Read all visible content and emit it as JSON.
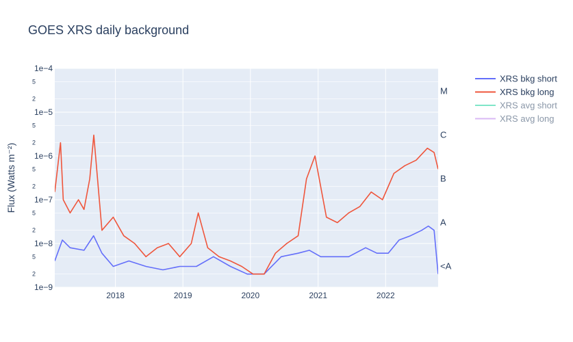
{
  "chart_data": {
    "type": "line",
    "title": "GOES XRS daily background",
    "ylabel": "Flux (Watts m⁻²)",
    "yscale": "log",
    "ylim": [
      1e-09,
      0.0001
    ],
    "xlim": [
      "2017-02-07",
      "2022-10-12"
    ],
    "x_ticks": [
      "2018",
      "2019",
      "2020",
      "2021",
      "2022"
    ],
    "y_major_ticks": [
      "1e−4",
      "1e−5",
      "1e−6",
      "1e−7",
      "1e−8",
      "1e−9"
    ],
    "y_minor_labels": [
      "5",
      "2"
    ],
    "flare_classes": [
      "M",
      "C",
      "B",
      "A",
      "<A"
    ],
    "grid": true,
    "legend_position": "top-right",
    "colors": {
      "plot_bg": "#E5ECF6",
      "grid": "#ffffff",
      "bkg_short": "#636EFA",
      "bkg_long": "#EF553B",
      "avg_short": "#7FE5C8",
      "avg_long": "#D9B8F5"
    },
    "series": [
      {
        "name": "XRS bkg short",
        "visible": true,
        "x": [
          "2017-02-07",
          "2017-03-20",
          "2017-05-01",
          "2017-07-15",
          "2017-09-05",
          "2017-10-20",
          "2017-12-20",
          "2018-03-15",
          "2018-06-15",
          "2018-09-15",
          "2018-12-15",
          "2019-03-15",
          "2019-06-15",
          "2019-09-15",
          "2019-12-15",
          "2020-03-15",
          "2020-06-15",
          "2020-09-15",
          "2020-11-15",
          "2021-01-15",
          "2021-03-15",
          "2021-06-15",
          "2021-09-15",
          "2021-11-15",
          "2022-01-15",
          "2022-03-15",
          "2022-05-15",
          "2022-07-15",
          "2022-08-20",
          "2022-09-20",
          "2022-10-12"
        ],
        "y": [
          4e-09,
          1.2e-08,
          8e-09,
          7e-09,
          1.5e-08,
          6e-09,
          3e-09,
          4e-09,
          3e-09,
          2.5e-09,
          3e-09,
          3e-09,
          5e-09,
          3e-09,
          2e-09,
          2e-09,
          5e-09,
          6e-09,
          7e-09,
          5e-09,
          5e-09,
          5e-09,
          8e-09,
          6e-09,
          6e-09,
          1.2e-08,
          1.5e-08,
          2e-08,
          2.5e-08,
          2e-08,
          2e-09
        ]
      },
      {
        "name": "XRS bkg long",
        "visible": true,
        "x": [
          "2017-02-07",
          "2017-03-10",
          "2017-03-25",
          "2017-05-01",
          "2017-06-15",
          "2017-07-15",
          "2017-08-15",
          "2017-09-06",
          "2017-10-20",
          "2017-12-20",
          "2018-02-15",
          "2018-04-15",
          "2018-06-15",
          "2018-08-15",
          "2018-10-15",
          "2018-12-15",
          "2019-02-15",
          "2019-03-25",
          "2019-05-15",
          "2019-07-15",
          "2019-09-15",
          "2019-11-15",
          "2020-01-15",
          "2020-03-15",
          "2020-05-15",
          "2020-07-15",
          "2020-09-15",
          "2020-10-30",
          "2020-12-15",
          "2021-02-15",
          "2021-04-15",
          "2021-06-15",
          "2021-08-15",
          "2021-10-15",
          "2021-12-15",
          "2022-02-15",
          "2022-04-15",
          "2022-06-15",
          "2022-08-15",
          "2022-09-20",
          "2022-10-12"
        ],
        "y": [
          1.5e-07,
          2e-06,
          1e-07,
          5e-08,
          1e-07,
          6e-08,
          3e-07,
          3e-06,
          2e-08,
          4e-08,
          1.5e-08,
          1e-08,
          5e-09,
          8e-09,
          1e-08,
          5e-09,
          1e-08,
          5e-08,
          8e-09,
          5e-09,
          4e-09,
          3e-09,
          2e-09,
          2e-09,
          6e-09,
          1e-08,
          1.5e-08,
          3e-07,
          1e-06,
          4e-08,
          3e-08,
          5e-08,
          7e-08,
          1.5e-07,
          1e-07,
          4e-07,
          6e-07,
          8e-07,
          1.5e-06,
          1.2e-06,
          5e-07
        ]
      },
      {
        "name": "XRS avg short",
        "visible": false,
        "x": [],
        "y": []
      },
      {
        "name": "XRS avg long",
        "visible": false,
        "x": [],
        "y": []
      }
    ]
  }
}
